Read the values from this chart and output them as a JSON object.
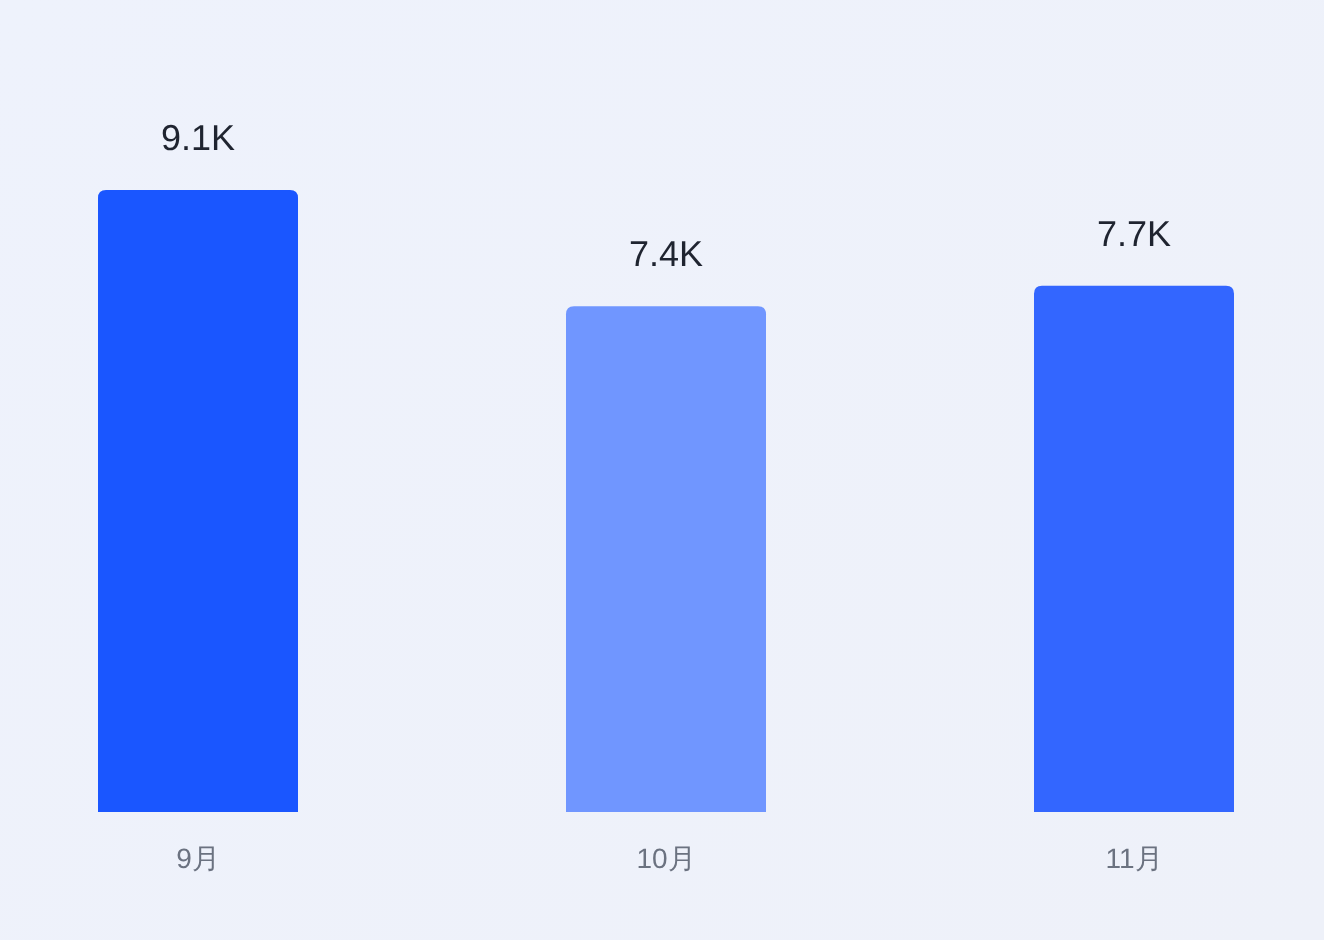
{
  "chart_data": {
    "type": "bar",
    "categories": [
      "9月",
      "10月",
      "11月"
    ],
    "values": [
      9100,
      7400,
      7700
    ],
    "colors": [
      "#1a56ff",
      "#7096ff",
      "#3366ff"
    ],
    "value_labels": [
      "9.1K",
      "7.4K",
      "7.7K"
    ]
  }
}
